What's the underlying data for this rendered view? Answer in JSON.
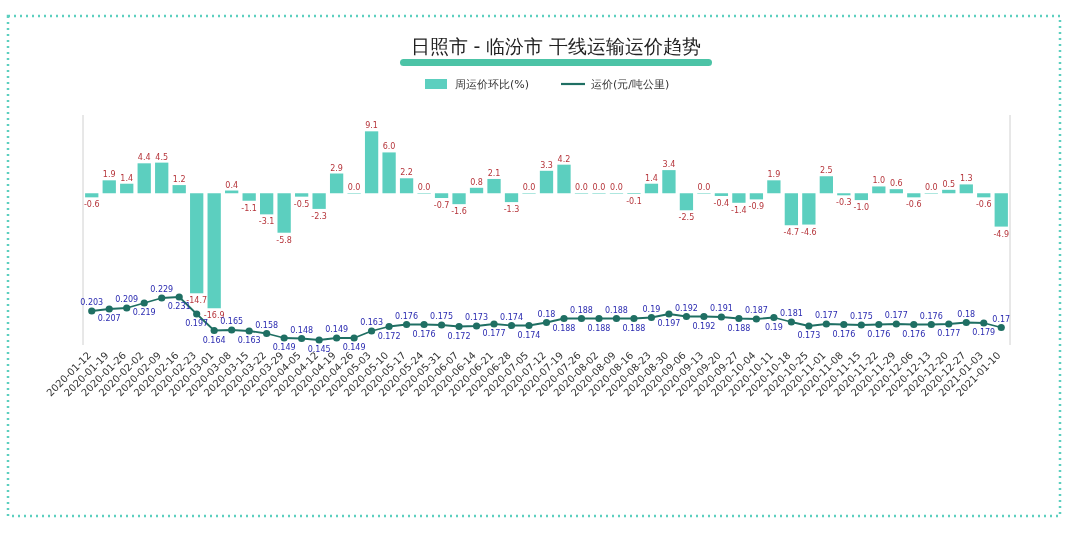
{
  "chart_data": {
    "type": "bar",
    "title": "日照市 - 临汾市 干线运输运价趋势",
    "categories": [
      "2020-01-12",
      "2020-01-19",
      "2020-01-26",
      "2020-02-02",
      "2020-02-09",
      "2020-02-16",
      "2020-02-23",
      "2020-03-01",
      "2020-03-08",
      "2020-03-15",
      "2020-03-22",
      "2020-03-29",
      "2020-04-05",
      "2020-04-12",
      "2020-04-19",
      "2020-04-26",
      "2020-05-03",
      "2020-05-10",
      "2020-05-17",
      "2020-05-24",
      "2020-05-31",
      "2020-06-07",
      "2020-06-14",
      "2020-06-21",
      "2020-06-28",
      "2020-07-05",
      "2020-07-12",
      "2020-07-19",
      "2020-07-26",
      "2020-08-02",
      "2020-08-09",
      "2020-08-16",
      "2020-08-23",
      "2020-08-30",
      "2020-09-06",
      "2020-09-13",
      "2020-09-20",
      "2020-09-27",
      "2020-10-04",
      "2020-10-11",
      "2020-10-18",
      "2020-10-25",
      "2020-11-01",
      "2020-11-08",
      "2020-11-15",
      "2020-11-22",
      "2020-11-29",
      "2020-12-06",
      "2020-12-13",
      "2020-12-20",
      "2020-12-27",
      "2021-01-03",
      "2021-01-10"
    ],
    "series": [
      {
        "name": "周运价环比(%)",
        "color": "#5ccfbf",
        "value_labels": [
          "-0.6",
          "1.9",
          "1.4",
          "4.4",
          "4.5",
          "1.2",
          "-14.7",
          "-16.9",
          "0.4",
          "-1.1",
          "-3.1",
          "-5.8",
          "-0.5",
          "-2.3",
          "2.9",
          "0.0",
          "9.1",
          "6.0",
          "2.2",
          "0.0",
          "-0.7",
          "-1.6",
          "0.8",
          "2.1",
          "-1.3",
          "0.0",
          "3.3",
          "4.2",
          "0.0",
          "0.0",
          "0.0",
          "-0.1",
          "1.4",
          "3.4",
          "-2.5",
          "0.0",
          "-0.4",
          "-1.4",
          "-0.9",
          "1.9",
          "-4.7",
          "-4.6",
          "2.5",
          "-0.3",
          "-1.0",
          "1.0",
          "0.6",
          "-0.6",
          "0.0",
          "0.5",
          "1.3",
          "-0.6",
          "-4.9"
        ],
        "values": [
          -0.6,
          1.9,
          1.4,
          4.4,
          4.5,
          1.2,
          -14.7,
          -16.9,
          0.4,
          -1.1,
          -3.1,
          -5.8,
          -0.5,
          -2.3,
          2.9,
          0.0,
          9.1,
          6.0,
          2.2,
          0.0,
          -0.7,
          -1.6,
          0.8,
          2.1,
          -1.3,
          0.0,
          3.3,
          4.2,
          0.0,
          0.0,
          0.0,
          -0.1,
          1.4,
          3.4,
          -2.5,
          0.0,
          -0.4,
          -1.4,
          -0.9,
          1.9,
          -4.7,
          -4.6,
          2.5,
          -0.3,
          -1.0,
          1.0,
          0.6,
          -0.6,
          0.0,
          0.5,
          1.3,
          -0.6,
          -4.9
        ]
      },
      {
        "name": "运价(元/吨公里)",
        "type": "line",
        "axis": "y2",
        "color": "#1f6f63",
        "marker": "circle",
        "values": [
          0.203,
          0.207,
          0.209,
          0.219,
          0.229,
          0.231,
          0.197,
          0.164,
          0.165,
          0.163,
          0.158,
          0.149,
          0.148,
          0.145,
          0.149,
          0.149,
          0.163,
          0.172,
          0.176,
          0.176,
          0.175,
          0.172,
          0.173,
          0.177,
          0.174,
          0.174,
          0.18,
          0.188,
          0.188,
          0.188,
          0.188,
          0.188,
          0.19,
          0.197,
          0.192,
          0.192,
          0.191,
          0.188,
          0.187,
          0.19,
          0.181,
          0.173,
          0.177,
          0.176,
          0.175,
          0.176,
          0.177,
          0.176,
          0.176,
          0.177,
          0.18,
          0.179,
          0.17
        ]
      }
    ],
    "ylim": [
      -22.3,
      11.5
    ],
    "y2lim": [
      0.135,
      0.595
    ],
    "data_labels": true,
    "legend": "top"
  }
}
